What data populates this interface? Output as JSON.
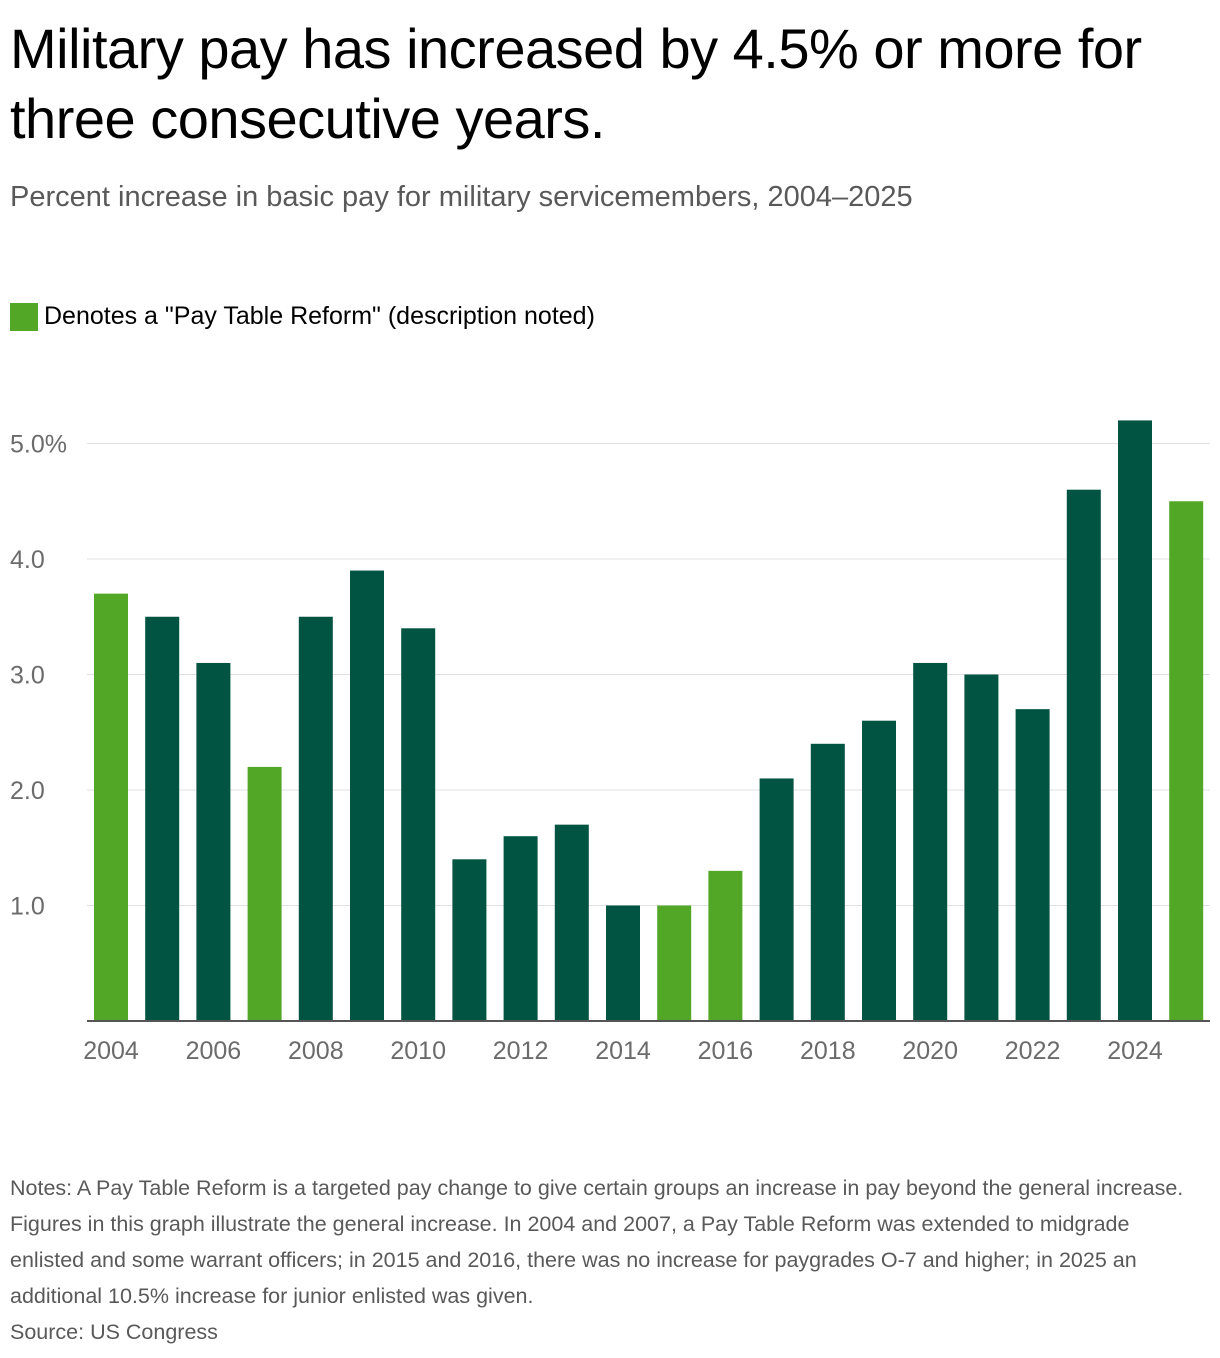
{
  "title": "Military pay has increased by 4.5% or more for three consecutive years.",
  "subtitle": "Percent increase in basic pay for military servicemembers, 2004–2025",
  "legend": {
    "label": "Denotes a \"Pay Table Reform\" (description noted)",
    "color": "#52a826"
  },
  "colors": {
    "regular": "#015442",
    "reform": "#52a826",
    "gridline": "#e0e0e0",
    "axis": "#555555",
    "tick_text": "#6b6b6b"
  },
  "chart_data": {
    "type": "bar",
    "x": [
      2004,
      2005,
      2006,
      2007,
      2008,
      2009,
      2010,
      2011,
      2012,
      2013,
      2014,
      2015,
      2016,
      2017,
      2018,
      2019,
      2020,
      2021,
      2022,
      2023,
      2024,
      2025
    ],
    "values": [
      3.7,
      3.5,
      3.1,
      2.2,
      3.5,
      3.9,
      3.4,
      1.4,
      1.6,
      1.7,
      1.0,
      1.0,
      1.3,
      2.1,
      2.4,
      2.6,
      3.1,
      3.0,
      2.7,
      4.6,
      5.2,
      4.5
    ],
    "pay_table_reform": [
      true,
      false,
      false,
      true,
      false,
      false,
      false,
      false,
      false,
      false,
      false,
      true,
      true,
      false,
      false,
      false,
      false,
      false,
      false,
      false,
      false,
      true
    ],
    "y_ticks": [
      1.0,
      2.0,
      3.0,
      4.0,
      5.0
    ],
    "y_tick_labels": [
      "1.0",
      "2.0",
      "3.0",
      "4.0",
      "5.0%"
    ],
    "x_tick_labels": [
      "2004",
      "2006",
      "2008",
      "2010",
      "2012",
      "2014",
      "2016",
      "2018",
      "2020",
      "2022",
      "2024"
    ],
    "ylim": [
      0,
      5.3
    ],
    "title": "Military pay has increased by 4.5% or more for three consecutive years.",
    "xlabel": "",
    "ylabel": "",
    "grid": true
  },
  "notes": "Notes: A Pay Table Reform is a targeted pay change to give certain groups an increase in pay beyond the general increase. Figures in this graph illustrate the general increase. In 2004 and 2007, a Pay Table Reform was extended to midgrade enlisted and some warrant officers; in 2015 and 2016, there was no increase for paygrades O-7 and higher; in 2025 an additional 10.5% increase for junior enlisted was given.",
  "source": "Source: US Congress"
}
